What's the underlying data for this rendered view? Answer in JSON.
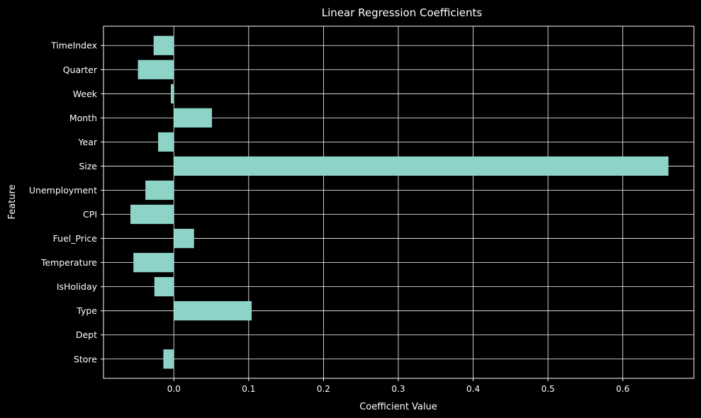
{
  "chart_data": {
    "type": "bar",
    "orientation": "horizontal",
    "title": "Linear Regression Coefficients",
    "xlabel": "Coefficient Value",
    "ylabel": "Feature",
    "categories": [
      "Store",
      "Dept",
      "Type",
      "IsHoliday",
      "Temperature",
      "Fuel_Price",
      "CPI",
      "Unemployment",
      "Size",
      "Year",
      "Month",
      "Week",
      "Quarter",
      "TimeIndex"
    ],
    "values": [
      -0.014,
      0.0,
      0.104,
      -0.026,
      -0.054,
      0.027,
      -0.058,
      -0.038,
      0.661,
      -0.021,
      0.051,
      -0.004,
      -0.048,
      -0.027
    ],
    "xlim": [
      -0.094,
      0.695
    ],
    "xticks": [
      0.0,
      0.1,
      0.2,
      0.3,
      0.4,
      0.5,
      0.6
    ],
    "xtick_labels": [
      "0.0",
      "0.1",
      "0.2",
      "0.3",
      "0.4",
      "0.5",
      "0.6"
    ],
    "grid": true,
    "legend": "none",
    "colors": {
      "background": "#000000",
      "bar": "#8dd3c7",
      "grid": "#ffffff",
      "text": "#ffffff"
    }
  }
}
